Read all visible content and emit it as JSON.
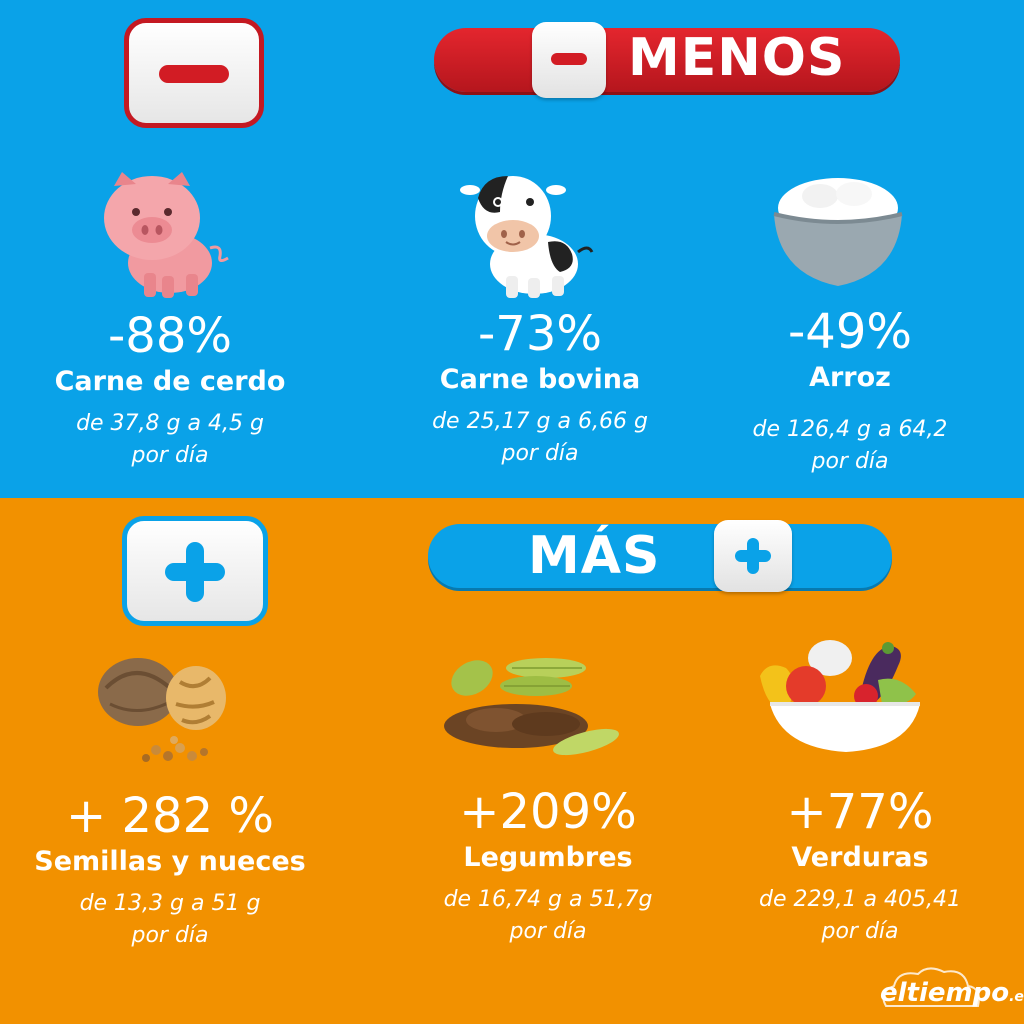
{
  "menos": {
    "label": "MENOS",
    "items": [
      {
        "pct": "-88%",
        "name": "Carne de cerdo",
        "line1": "de 37,8 g a 4,5 g",
        "line2": "por día",
        "icon": "pig-icon"
      },
      {
        "pct": "-73%",
        "name": "Carne bovina",
        "line1": "de 25,17 g a 6,66 g",
        "line2": "por día",
        "icon": "cow-icon"
      },
      {
        "pct": "-49%",
        "name": "Arroz",
        "line1": "de 126,4 g a 64,2",
        "line2": "por día",
        "icon": "rice-bowl-icon"
      }
    ]
  },
  "mas": {
    "label": "MÁS",
    "items": [
      {
        "pct": "+ 282 %",
        "name": "Semillas y nueces",
        "line1": "de 13,3 g a 51 g",
        "line2": "por día",
        "icon": "walnut-icon"
      },
      {
        "pct": "+209%",
        "name": "Legumbres",
        "line1": "de 16,74 g a 51,7g",
        "line2": "por día",
        "icon": "legumes-icon"
      },
      {
        "pct": "+77%",
        "name": "Verduras",
        "line1": "de 229,1 a 405,41",
        "line2": "por día",
        "icon": "vegetables-bowl-icon"
      }
    ]
  },
  "logo": {
    "main": "eltiempo",
    "suffix": ".es"
  },
  "colors": {
    "top_bg": "#0aa2e8",
    "bottom_bg": "#f29100",
    "red": "#d21c24"
  }
}
